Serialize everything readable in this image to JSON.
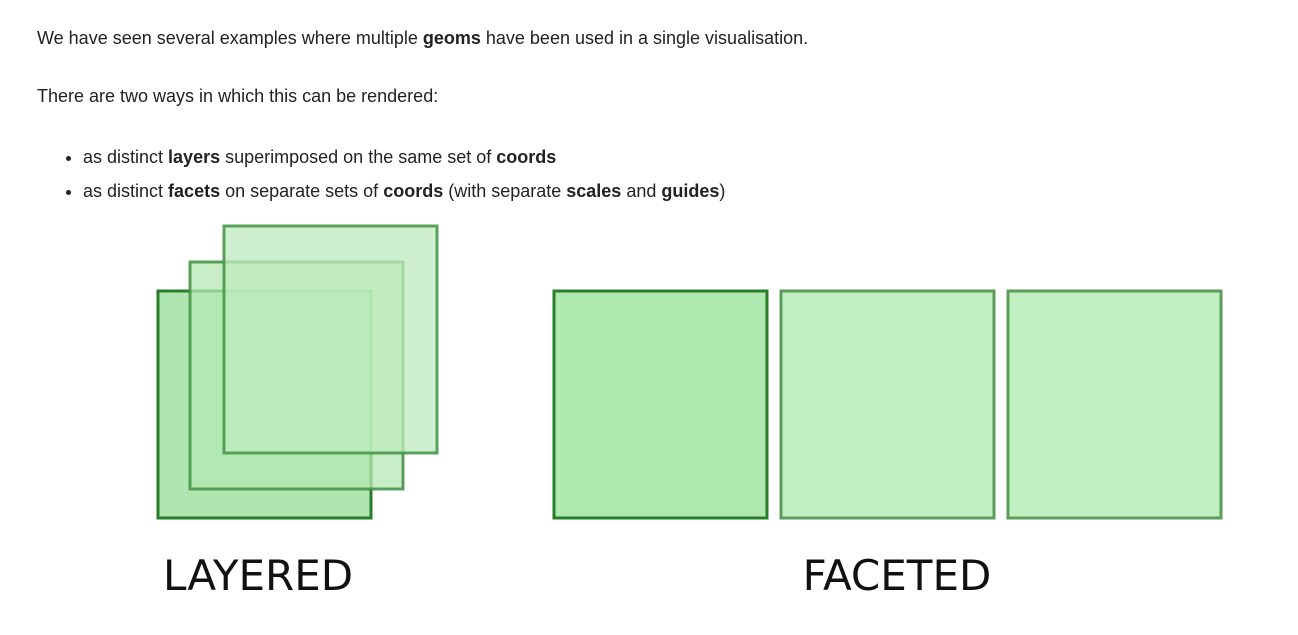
{
  "paragraphs": [
    [
      "We have seen several examples where multiple ",
      "geoms",
      " have been used in a single visualisation."
    ],
    [
      "There are two ways in which this can be rendered:"
    ]
  ],
  "bullets": [
    [
      "as distinct ",
      "layers",
      " superimposed on the same set of ",
      "coords"
    ],
    [
      "as distinct ",
      "facets",
      " on separate sets of ",
      "coords",
      " (with separate ",
      "scales",
      " and ",
      "guides",
      ")"
    ]
  ],
  "diagram": {
    "layered_label": "LAYERED",
    "faceted_label": "FACETED"
  }
}
